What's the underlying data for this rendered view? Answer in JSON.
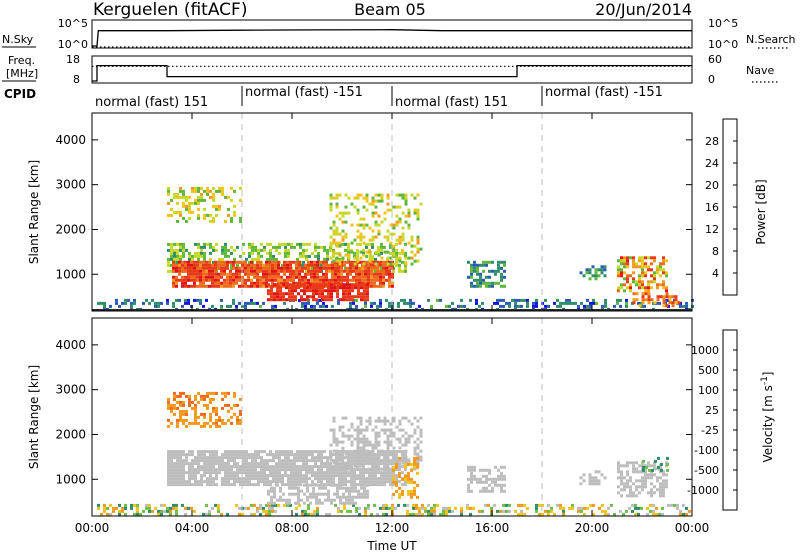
{
  "header": {
    "station": "Kerguelen (fitACF)",
    "beam": "Beam 05",
    "date": "20/Jun/2014"
  },
  "chart_data": [
    {
      "type": "line",
      "name": "noise panel",
      "left_label": "N.Sky",
      "right_label": "N.Search",
      "left_ticks": [
        "10^5",
        "10^0"
      ],
      "right_ticks": [
        "10^5",
        "10^0"
      ],
      "series": [
        {
          "name": "N.Sky",
          "style": "solid",
          "x": [
            0.0,
            0.2,
            0.25,
            3.0,
            6.0,
            9.0,
            12.0,
            14.0,
            18.0,
            21.0,
            24.0
          ],
          "y": [
            1,
            1,
            3000,
            3000,
            4000,
            4500,
            5000,
            3000,
            3000,
            3000,
            3000
          ]
        },
        {
          "name": "N.Search",
          "style": "dotted",
          "x": [
            0,
            24
          ],
          "y": [
            0,
            0
          ]
        }
      ]
    },
    {
      "type": "line",
      "name": "frequency / nave panel",
      "left_label_lines": [
        "Freq.",
        "[MHz]"
      ],
      "right_label": "Nave",
      "left_ticks": [
        "18",
        "8"
      ],
      "right_ticks": [
        "60",
        "0"
      ],
      "series": [
        {
          "name": "Freq.",
          "style": "solid",
          "x": [
            0.0,
            0.2,
            0.2,
            3.0,
            3.0,
            17.0,
            17.0,
            24.0
          ],
          "y": [
            8.0,
            8.0,
            15.0,
            15.0,
            10.0,
            10.0,
            15.0,
            15.0
          ]
        },
        {
          "name": "Nave",
          "style": "dotted",
          "x": [
            0,
            24
          ],
          "y": [
            40,
            40
          ]
        }
      ]
    },
    {
      "type": "table",
      "name": "CPID bar",
      "label": "CPID",
      "segments": [
        {
          "start": 0,
          "end": 6,
          "text": "normal (fast) 151"
        },
        {
          "start": 6,
          "end": 12,
          "text": "normal (fast) -151"
        },
        {
          "start": 12,
          "end": 18,
          "text": "normal (fast) 151"
        },
        {
          "start": 18,
          "end": 24,
          "text": "normal (fast) -151"
        }
      ]
    },
    {
      "type": "heatmap",
      "name": "power",
      "ylabel": "Slant Range [km]",
      "y_ticks": [
        1000,
        2000,
        3000,
        4000
      ],
      "ylim": [
        180,
        4600
      ],
      "colorbar": {
        "label": "Power [dB]",
        "ticks": [
          "4",
          "8",
          "12",
          "16",
          "20",
          "24",
          "28"
        ],
        "colors": [
          "#1515e0",
          "#2c5db6",
          "#2f8f6a",
          "#5fb83a",
          "#c8d82a",
          "#f2c31c",
          "#f39a1e",
          "#ef6a1c",
          "#e83a1a",
          "#e01414"
        ]
      },
      "regions": [
        {
          "t": [
            0.2,
            24.0
          ],
          "r": [
            200,
            450
          ],
          "v": [
            2,
            10
          ],
          "density": 0.35
        },
        {
          "t": [
            3.0,
            6.0
          ],
          "r": [
            2150,
            2950
          ],
          "v": [
            10,
            20
          ],
          "density": 0.35
        },
        {
          "t": [
            3.0,
            12.5
          ],
          "r": [
            1050,
            1700
          ],
          "v": [
            8,
            16
          ],
          "density": 0.5
        },
        {
          "t": [
            3.2,
            12.0
          ],
          "r": [
            700,
            1300
          ],
          "v": [
            22,
            30
          ],
          "density": 0.9
        },
        {
          "t": [
            7.0,
            11.0
          ],
          "r": [
            450,
            800
          ],
          "v": [
            26,
            30
          ],
          "density": 0.75
        },
        {
          "t": [
            9.5,
            13.2
          ],
          "r": [
            1200,
            2800
          ],
          "v": [
            10,
            20
          ],
          "density": 0.3
        },
        {
          "t": [
            15.0,
            16.5
          ],
          "r": [
            750,
            1300
          ],
          "v": [
            4,
            12
          ],
          "density": 0.5
        },
        {
          "t": [
            19.5,
            20.5
          ],
          "r": [
            900,
            1200
          ],
          "v": [
            4,
            12
          ],
          "density": 0.4
        },
        {
          "t": [
            21.0,
            23.0
          ],
          "r": [
            650,
            1400
          ],
          "v": [
            10,
            30
          ],
          "density": 0.55
        },
        {
          "t": [
            21.5,
            23.5
          ],
          "r": [
            300,
            600
          ],
          "v": [
            18,
            28
          ],
          "density": 0.45
        }
      ]
    },
    {
      "type": "heatmap",
      "name": "velocity",
      "ylabel": "Slant Range [km]",
      "y_ticks": [
        1000,
        2000,
        3000,
        4000
      ],
      "ylim": [
        180,
        4600
      ],
      "xlabel": "Time UT",
      "x_ticks": [
        "00:00",
        "04:00",
        "08:00",
        "12:00",
        "16:00",
        "20:00",
        "00:00"
      ],
      "colorbar": {
        "label": "Velocity [m s^-1]",
        "ticks": [
          "1000",
          "500",
          "100",
          "25",
          "-25",
          "-100",
          "-500",
          "-1000"
        ],
        "colors": [
          "#2233c8",
          "#2c6aa8",
          "#2f8f6a",
          "#6cc04a",
          "#bdbdbd",
          "#f2c31c",
          "#f39a1e",
          "#ef6a1c",
          "#e01414"
        ]
      },
      "regions": [
        {
          "t": [
            0.2,
            24.0
          ],
          "r": [
            200,
            450
          ],
          "v": [
            -150,
            150
          ],
          "density": 0.35
        },
        {
          "t": [
            3.0,
            6.0
          ],
          "r": [
            2150,
            2950
          ],
          "v": [
            -700,
            -100
          ],
          "density": 0.45
        },
        {
          "t": [
            3.0,
            12.5
          ],
          "r": [
            900,
            1650
          ],
          "v": [
            -20,
            20
          ],
          "density": 0.85
        },
        {
          "t": [
            7.0,
            11.0
          ],
          "r": [
            450,
            900
          ],
          "v": [
            -20,
            20
          ],
          "density": 0.6
        },
        {
          "t": [
            9.5,
            13.2
          ],
          "r": [
            1200,
            2400
          ],
          "v": [
            -20,
            20
          ],
          "density": 0.45
        },
        {
          "t": [
            12.0,
            13.0
          ],
          "r": [
            600,
            1500
          ],
          "v": [
            -200,
            -50
          ],
          "density": 0.4
        },
        {
          "t": [
            15.0,
            16.5
          ],
          "r": [
            750,
            1300
          ],
          "v": [
            -20,
            20
          ],
          "density": 0.5
        },
        {
          "t": [
            19.5,
            20.5
          ],
          "r": [
            900,
            1200
          ],
          "v": [
            -20,
            20
          ],
          "density": 0.4
        },
        {
          "t": [
            21.0,
            23.0
          ],
          "r": [
            650,
            1400
          ],
          "v": [
            -20,
            20
          ],
          "density": 0.55
        },
        {
          "t": [
            22.0,
            23.0
          ],
          "r": [
            1200,
            1500
          ],
          "v": [
            50,
            200
          ],
          "density": 0.3
        }
      ]
    }
  ]
}
